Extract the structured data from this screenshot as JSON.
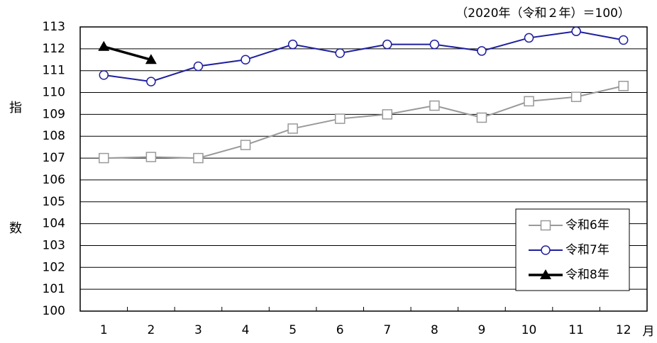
{
  "chart_data": {
    "type": "line",
    "subtitle": "（2020年（令和２年）＝100）",
    "y_label": "指数",
    "x_label": "月",
    "categories": [
      "1",
      "2",
      "3",
      "4",
      "5",
      "6",
      "7",
      "8",
      "9",
      "10",
      "11",
      "12"
    ],
    "series": [
      {
        "name": "令和6年",
        "color": "#999999",
        "marker": "square",
        "values": [
          107.0,
          107.05,
          107.0,
          107.6,
          108.35,
          108.8,
          109.0,
          109.4,
          108.85,
          109.6,
          109.8,
          110.3
        ]
      },
      {
        "name": "令和7年",
        "color": "#1f1f9e",
        "marker": "circle",
        "values": [
          110.8,
          110.5,
          111.2,
          111.5,
          112.2,
          111.8,
          112.2,
          112.2,
          111.9,
          112.5,
          112.8,
          112.4
        ]
      },
      {
        "name": "令和8年",
        "color": "#000000",
        "marker": "triangle",
        "values": [
          112.1,
          111.5,
          null,
          null,
          null,
          null,
          null,
          null,
          null,
          null,
          null,
          null
        ]
      }
    ],
    "ylim": [
      100,
      113
    ],
    "yticks": [
      100,
      101,
      102,
      103,
      104,
      105,
      106,
      107,
      108,
      109,
      110,
      111,
      112,
      113
    ],
    "grid": true,
    "legend": "lower right"
  }
}
